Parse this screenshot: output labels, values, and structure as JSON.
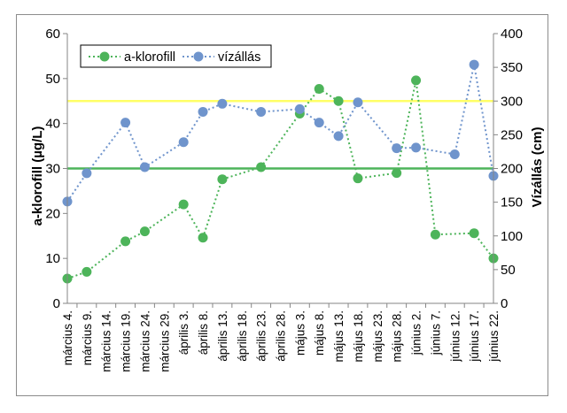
{
  "chart_data": {
    "type": "line",
    "categories": [
      "március 4.",
      "március 9.",
      "március 14.",
      "március 19.",
      "március 24.",
      "március 29.",
      "április 3.",
      "április 8.",
      "április 13.",
      "április 18.",
      "április 23.",
      "április 28.",
      "május 3.",
      "május 8.",
      "május 13.",
      "május 18.",
      "május 23.",
      "május 28.",
      "június 2.",
      "június 7.",
      "június 12.",
      "június 17.",
      "június 22."
    ],
    "series": [
      {
        "name": "a-klorofill",
        "axis": "left",
        "color": "#4db45a",
        "line_style": "dotted",
        "marker": "circle",
        "points": [
          {
            "x": "március 4.",
            "y": 5.5
          },
          {
            "x": "március 9.",
            "y": 7
          },
          {
            "x": "március 19.",
            "y": 13.8
          },
          {
            "x": "március 24.",
            "y": 16
          },
          {
            "x": "április 3.",
            "y": 22
          },
          {
            "x": "április 8.",
            "y": 14.6
          },
          {
            "x": "április 13.",
            "y": 27.6
          },
          {
            "x": "április 23.",
            "y": 30.3
          },
          {
            "x": "május 3.",
            "y": 42.2
          },
          {
            "x": "május 8.",
            "y": 47.7
          },
          {
            "x": "május 13.",
            "y": 45
          },
          {
            "x": "május 18.",
            "y": 27.8
          },
          {
            "x": "május 28.",
            "y": 29
          },
          {
            "x": "június 2.",
            "y": 49.6
          },
          {
            "x": "június 7.",
            "y": 15.3
          },
          {
            "x": "június 17.",
            "y": 15.6
          },
          {
            "x": "június 22.",
            "y": 10
          }
        ]
      },
      {
        "name": "vízállás",
        "axis": "right",
        "color": "#6f94cc",
        "line_style": "dotted",
        "marker": "circle",
        "points": [
          {
            "x": "március 4.",
            "y": 151
          },
          {
            "x": "március 9.",
            "y": 193
          },
          {
            "x": "március 19.",
            "y": 268
          },
          {
            "x": "március 24.",
            "y": 202
          },
          {
            "x": "április 3.",
            "y": 239
          },
          {
            "x": "április 8.",
            "y": 284
          },
          {
            "x": "április 13.",
            "y": 296
          },
          {
            "x": "április 23.",
            "y": 284
          },
          {
            "x": "május 3.",
            "y": 288
          },
          {
            "x": "május 8.",
            "y": 268
          },
          {
            "x": "május 13.",
            "y": 248
          },
          {
            "x": "május 18.",
            "y": 298
          },
          {
            "x": "május 28.",
            "y": 230
          },
          {
            "x": "június 2.",
            "y": 231
          },
          {
            "x": "június 12.",
            "y": 221
          },
          {
            "x": "június 17.",
            "y": 354
          },
          {
            "x": "június 22.",
            "y": 189
          }
        ]
      }
    ],
    "reference_lines": [
      {
        "axis": "left",
        "value": 30,
        "color": "#4db45a"
      },
      {
        "axis": "left",
        "value": 45,
        "color": "#ffff66"
      }
    ],
    "y_left": {
      "label": "a-klorofill (µg/L)",
      "ylim": [
        0,
        60
      ],
      "ticks": [
        "0",
        "10",
        "20",
        "30",
        "40",
        "50",
        "60"
      ]
    },
    "y_right": {
      "label": "Vízállás (cm)",
      "ylim": [
        0,
        400
      ],
      "ticks": [
        "0",
        "50",
        "100",
        "150",
        "200",
        "250",
        "300",
        "350",
        "400"
      ]
    },
    "grid": false,
    "legend": {
      "placement": "top-left",
      "entries": [
        "a-klorofill",
        "vízállás"
      ]
    }
  }
}
